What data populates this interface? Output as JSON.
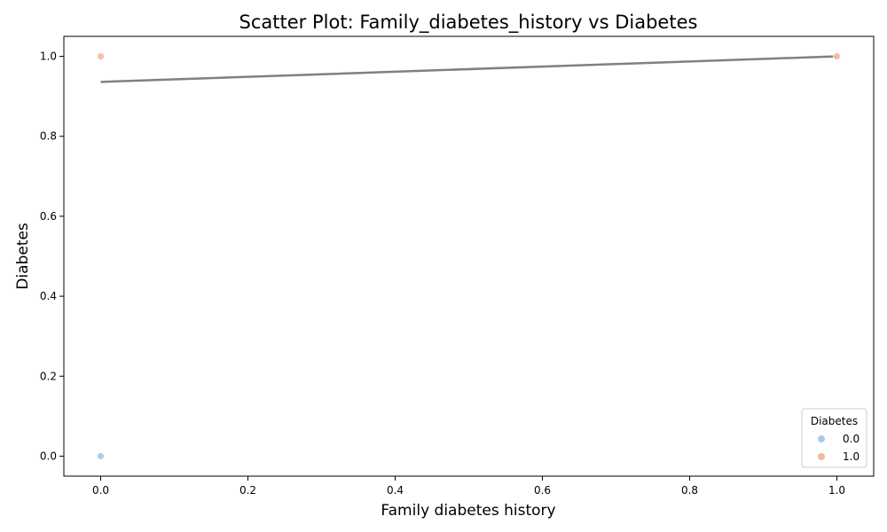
{
  "chart_data": {
    "type": "scatter",
    "title": "Scatter Plot: Family_diabetes_history vs Diabetes",
    "xlabel": "Family diabetes history",
    "ylabel": "Diabetes",
    "xlim": [
      -0.05,
      1.05
    ],
    "ylim": [
      -0.05,
      1.05
    ],
    "xticks": [
      0.0,
      0.2,
      0.4,
      0.6,
      0.8,
      1.0
    ],
    "yticks": [
      0.0,
      0.2,
      0.4,
      0.6,
      0.8,
      1.0
    ],
    "xtick_labels": [
      "0.0",
      "0.2",
      "0.4",
      "0.6",
      "0.8",
      "1.0"
    ],
    "ytick_labels": [
      "0.0",
      "0.2",
      "0.4",
      "0.6",
      "0.8",
      "1.0"
    ],
    "grid": false,
    "legend": {
      "title": "Diabetes",
      "placement": "lower-right",
      "entries": [
        {
          "label": "0.0",
          "color": "#a9c6f0"
        },
        {
          "label": "1.0",
          "color": "#f2b9a0"
        }
      ]
    },
    "series": [
      {
        "name": "0.0",
        "color": "#a9c6f0",
        "points": [
          [
            0,
            0
          ]
        ]
      },
      {
        "name": "1.0",
        "color": "#f2b9a0",
        "points": [
          [
            0,
            1
          ],
          [
            1,
            1
          ]
        ]
      }
    ],
    "trendline": {
      "color": "#808080",
      "points": [
        [
          0,
          0.936
        ],
        [
          1,
          1.0
        ]
      ]
    }
  }
}
